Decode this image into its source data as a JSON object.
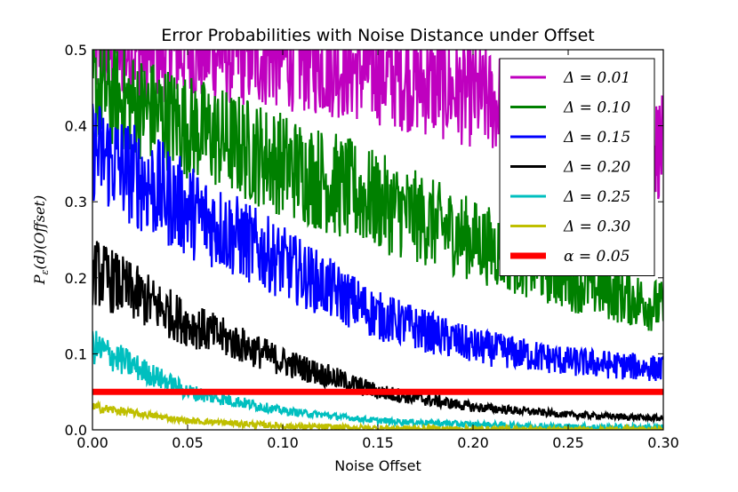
{
  "chart_data": {
    "type": "line",
    "title": "Error Probabilities with Noise Distance under Offset",
    "xlabel": "Noise Offset",
    "ylabel": "P_ε(d)(Offset)",
    "xlim": [
      0.0,
      0.3
    ],
    "ylim": [
      0.0,
      0.5
    ],
    "xticks": [
      "0.00",
      "0.05",
      "0.10",
      "0.15",
      "0.20",
      "0.25",
      "0.30"
    ],
    "yticks": [
      "0.0",
      "0.1",
      "0.2",
      "0.3",
      "0.4",
      "0.5"
    ],
    "grid": false,
    "legend_position": "top-right",
    "series": [
      {
        "name": "Δ = 0.01",
        "color": "#bf00bf",
        "noisy": true,
        "x": [
          0.0,
          0.05,
          0.1,
          0.15,
          0.2,
          0.25,
          0.3
        ],
        "y": [
          0.5,
          0.5,
          0.49,
          0.47,
          0.44,
          0.4,
          0.37
        ]
      },
      {
        "name": "Δ = 0.10",
        "color": "#008000",
        "noisy": true,
        "x": [
          0.0,
          0.05,
          0.1,
          0.15,
          0.2,
          0.25,
          0.3
        ],
        "y": [
          0.45,
          0.4,
          0.35,
          0.3,
          0.25,
          0.2,
          0.16
        ]
      },
      {
        "name": "Δ = 0.15",
        "color": "#0000ff",
        "noisy": true,
        "x": [
          0.0,
          0.05,
          0.1,
          0.15,
          0.2,
          0.25,
          0.3
        ],
        "y": [
          0.37,
          0.29,
          0.22,
          0.15,
          0.11,
          0.09,
          0.08
        ]
      },
      {
        "name": "Δ = 0.20",
        "color": "#000000",
        "noisy": true,
        "x": [
          0.0,
          0.05,
          0.1,
          0.15,
          0.2,
          0.25,
          0.3
        ],
        "y": [
          0.21,
          0.14,
          0.09,
          0.05,
          0.03,
          0.02,
          0.015
        ]
      },
      {
        "name": "Δ = 0.25",
        "color": "#00bfbf",
        "noisy": true,
        "x": [
          0.0,
          0.05,
          0.1,
          0.15,
          0.2,
          0.25,
          0.3
        ],
        "y": [
          0.11,
          0.05,
          0.025,
          0.012,
          0.007,
          0.004,
          0.003
        ]
      },
      {
        "name": "Δ = 0.30",
        "color": "#bfbf00",
        "noisy": true,
        "x": [
          0.0,
          0.05,
          0.1,
          0.15,
          0.2,
          0.25,
          0.3
        ],
        "y": [
          0.03,
          0.012,
          0.005,
          0.002,
          0.001,
          0.0,
          0.0
        ]
      },
      {
        "name": "α = 0.05",
        "color": "#ff0000",
        "noisy": false,
        "x": [
          0.0,
          0.3
        ],
        "y": [
          0.05,
          0.05
        ]
      }
    ]
  }
}
